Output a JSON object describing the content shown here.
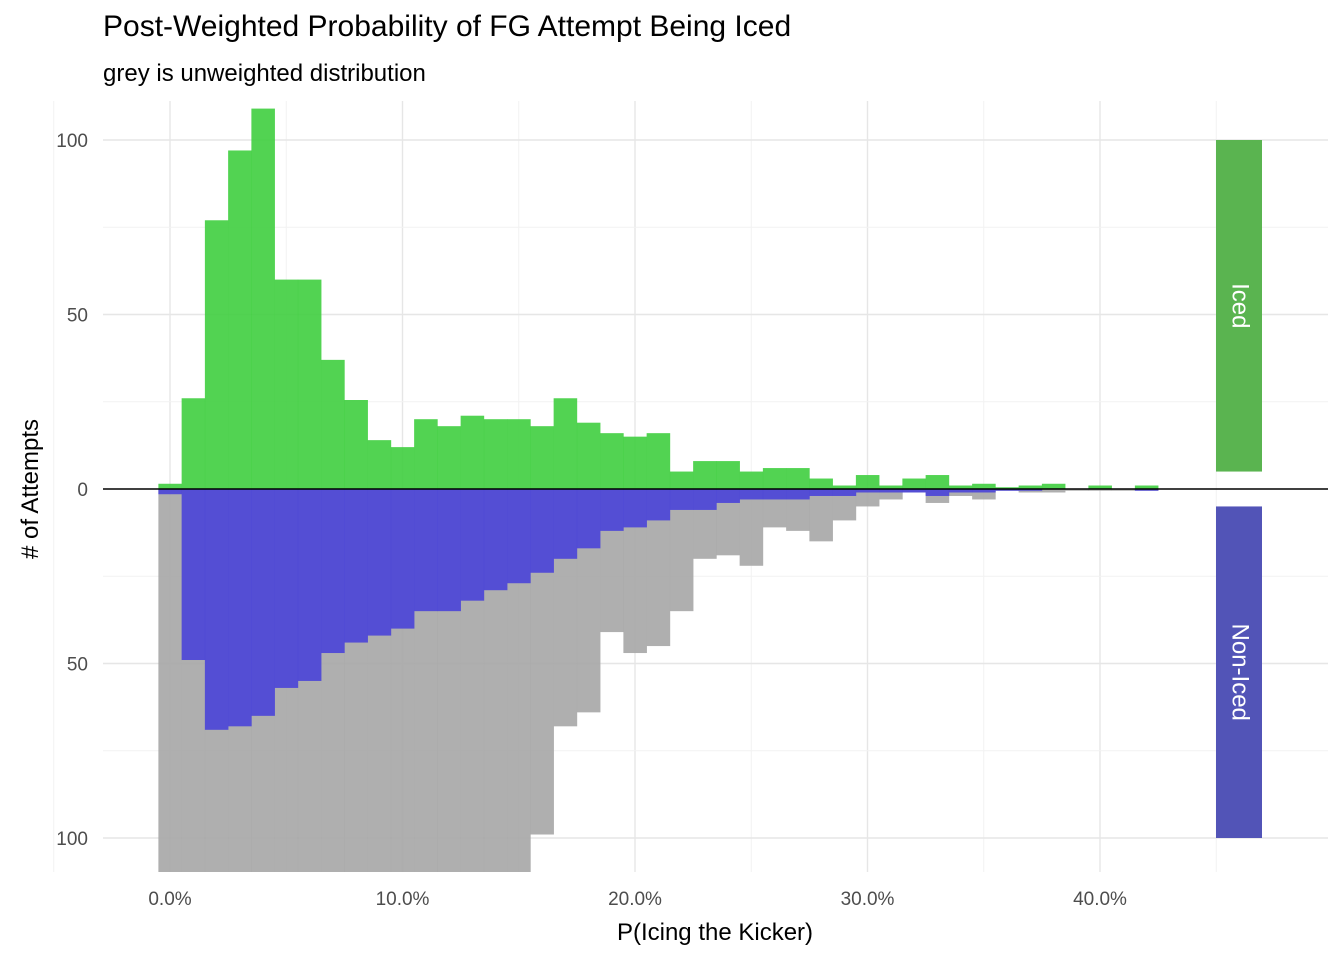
{
  "chart_data": {
    "type": "bar",
    "title": "Post-Weighted Probability of FG Attempt Being Iced",
    "subtitle": "grey is unweighted distribution",
    "xlabel": "P(Icing the Kicker)",
    "ylabel": "# of Attempts",
    "x_unit": "percent",
    "bin_width": 1,
    "bin_starts": [
      -0.5,
      0.5,
      1.5,
      2.5,
      3.5,
      4.5,
      5.5,
      6.5,
      7.5,
      8.5,
      9.5,
      10.5,
      11.5,
      12.5,
      13.5,
      14.5,
      15.5,
      16.5,
      17.5,
      18.5,
      19.5,
      20.5,
      21.5,
      22.5,
      23.5,
      24.5,
      25.5,
      26.5,
      27.5,
      28.5,
      29.5,
      30.5,
      31.5,
      32.5,
      33.5,
      34.5,
      35.5,
      36.5,
      37.5,
      38.5,
      39.5,
      40.5,
      41.5,
      42.5
    ],
    "xlim": [
      -2.5,
      50
    ],
    "ylim": [
      -110,
      110
    ],
    "x_ticks": [
      0,
      10,
      20,
      30,
      40
    ],
    "x_tick_labels": [
      "0.0%",
      "10.0%",
      "20.0%",
      "30.0%",
      "40.0%"
    ],
    "y_ticks": [
      100,
      50,
      0,
      -50,
      -100
    ],
    "y_tick_labels": [
      "100",
      "50",
      "0",
      "50",
      "100"
    ],
    "grid": true,
    "series": [
      {
        "name": "Iced",
        "role": "weighted",
        "color": "#3fce3f",
        "values": [
          1.5,
          26,
          77,
          97,
          109,
          60,
          60,
          37,
          25.5,
          14,
          12,
          20,
          18,
          21,
          20,
          20,
          18,
          26,
          19,
          16,
          15,
          16,
          5,
          8,
          8,
          5,
          6,
          6,
          3,
          1,
          4,
          1,
          3,
          4,
          1,
          1.5,
          0.5,
          1,
          1.5,
          0,
          1,
          0,
          1,
          0
        ]
      },
      {
        "name": "Non-Iced",
        "role": "weighted",
        "color": "#4a44d8",
        "values": [
          1.5,
          49,
          69,
          68,
          65,
          57,
          55,
          47,
          44,
          42,
          40,
          35,
          35,
          32,
          29,
          27,
          24,
          20,
          17,
          12,
          11,
          9,
          6,
          6,
          4,
          3,
          3,
          3,
          2,
          2,
          1,
          1,
          1,
          2,
          1,
          1,
          0.5,
          0.5,
          0,
          0,
          0,
          0,
          0.5,
          0
        ]
      },
      {
        "role": "unweighted",
        "color": "#a6a6a6",
        "values": [
          111,
          111,
          111,
          111,
          111,
          111,
          111,
          111,
          111,
          111,
          111,
          111,
          111,
          111,
          111,
          111,
          99,
          68,
          64,
          41,
          47,
          45,
          35,
          20,
          19,
          22,
          11,
          12,
          15,
          9,
          5,
          3,
          1,
          4,
          2,
          3,
          0.5,
          1,
          1,
          0.5,
          0.5,
          0.5,
          0.5,
          0
        ]
      }
    ],
    "facet_labels": [
      "Iced",
      "Non-Iced"
    ],
    "facet_colors": [
      "#5ab450",
      "#5254b7"
    ]
  }
}
